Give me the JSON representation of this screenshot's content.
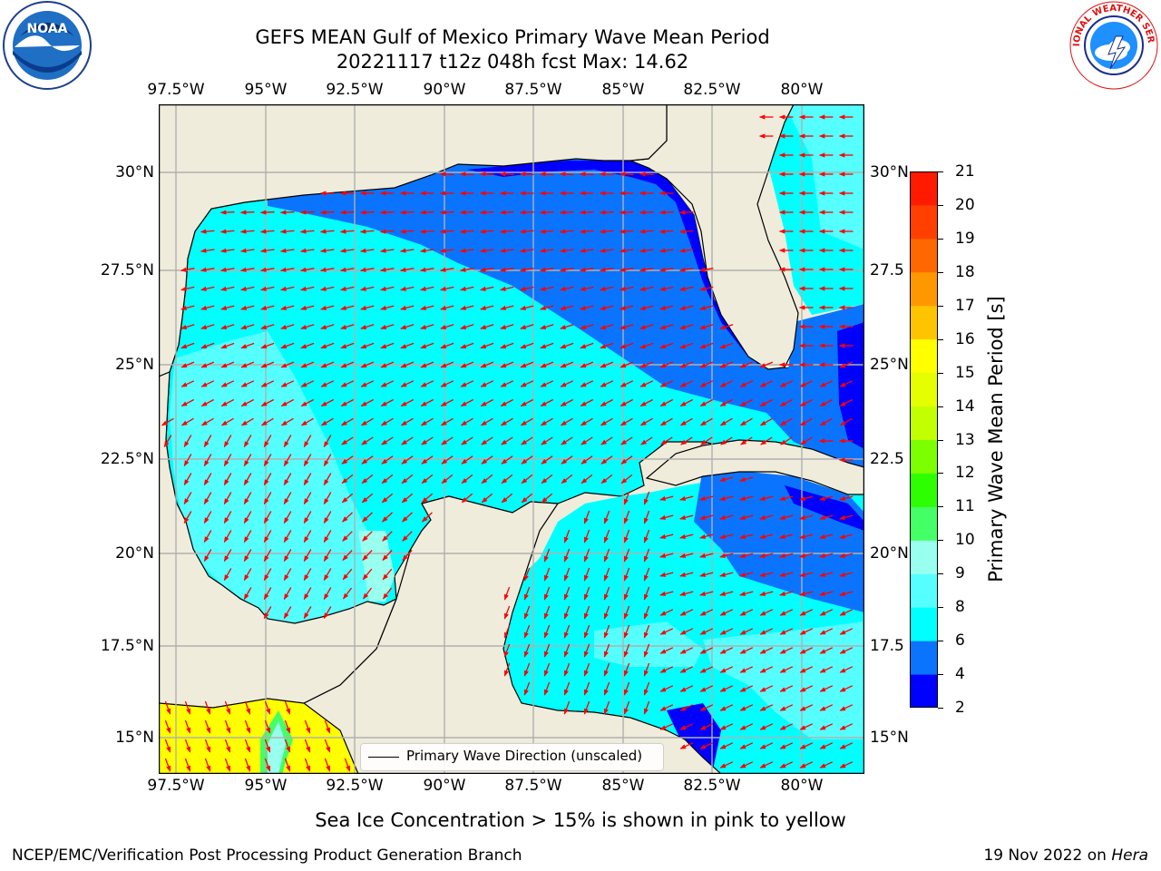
{
  "header": {
    "title_line1": "GEFS MEAN Gulf of Mexico Primary Wave Mean Period",
    "title_line2": "20221117 t12z 048h fcst   Max: 14.62"
  },
  "logos": {
    "left": {
      "name": "noaa-logo",
      "text": "NOAA"
    },
    "right": {
      "name": "nws-logo",
      "text": "NATIONAL WEATHER SERVICE"
    }
  },
  "axes": {
    "lon_labels": [
      "97.5°W",
      "95°W",
      "92.5°W",
      "90°W",
      "87.5°W",
      "85°W",
      "82.5°W",
      "80°W"
    ],
    "lat_labels_left": [
      "30°N",
      "27.5°N",
      "25°N",
      "22.5°N",
      "20°N",
      "17.5°N",
      "15°N"
    ],
    "lat_labels_right": [
      "30°N",
      "27.5",
      "25°N",
      "22.5",
      "20°N",
      "17.5",
      "15°N"
    ],
    "lon_range": [
      -98,
      -78.3
    ],
    "lat_range": [
      14,
      31.8
    ]
  },
  "colorbar": {
    "title": "Primary Wave Mean Period [s]",
    "ticks": [
      "2",
      "4",
      "6",
      "8",
      "9",
      "10",
      "11",
      "12",
      "13",
      "14",
      "15",
      "16",
      "17",
      "18",
      "19",
      "20",
      "21"
    ],
    "colors": [
      "#0000ff",
      "#0a74ff",
      "#00ffff",
      "#55ffff",
      "#99ffee",
      "#44ff66",
      "#2dff00",
      "#7cff00",
      "#c2ff00",
      "#e5ff00",
      "#ffff00",
      "#ffc400",
      "#ff9800",
      "#ff6800",
      "#ff4000",
      "#ff1a00"
    ]
  },
  "legend": {
    "label": "Primary Wave Direction (unscaled)"
  },
  "footer": {
    "ice_note": "Sea Ice Concentration > 15% is shown in pink to yellow",
    "credit_left": "NCEP/EMC/Verification Post Processing Product Generation Branch",
    "date": "19 Nov 2022",
    "on_word": "on",
    "host": "Hera"
  },
  "colors": {
    "land": "#efecdc",
    "arrow": "#ff0000",
    "grid": "#b0b0b0",
    "coast": "#000000"
  }
}
